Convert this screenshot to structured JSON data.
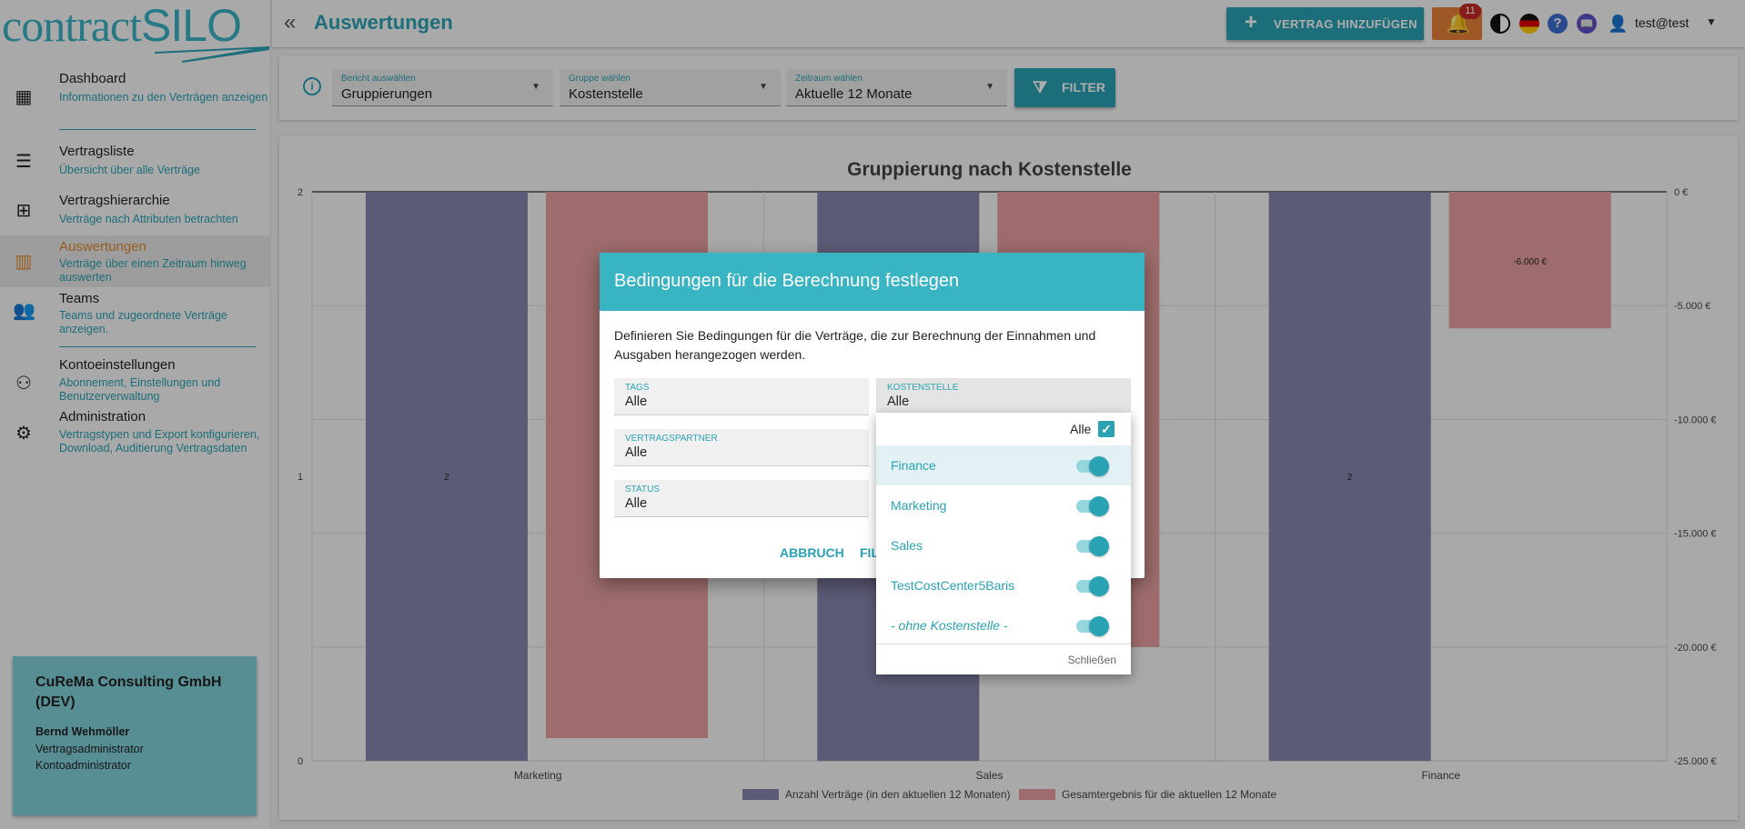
{
  "logo": {
    "part1": "contract",
    "part2": "SILO"
  },
  "sidebar": {
    "items": [
      {
        "label": "Dashboard",
        "sub": "Informationen zu den Verträgen anzeigen",
        "icon": "dashboard-icon"
      },
      {
        "label": "Vertragsliste",
        "sub": "Übersicht über alle Verträge",
        "icon": "list-icon"
      },
      {
        "label": "Vertragshierarchie",
        "sub": "Verträge nach Attributen betrachten",
        "icon": "hierarchy-icon"
      },
      {
        "label": "Auswertungen",
        "sub": "Verträge über einen Zeitraum hinweg auswerten",
        "icon": "chart-icon"
      },
      {
        "label": "Teams",
        "sub": "Teams und zugeordnete Verträge anzeigen.",
        "icon": "team-icon"
      },
      {
        "label": "Kontoeinstellungen",
        "sub": "Abonnement, Einstellungen und Benutzerverwaltung",
        "icon": "account-settings-icon"
      },
      {
        "label": "Administration",
        "sub": "Vertragstypen und Export konfigurieren, Download, Auditierung Vertragsdaten",
        "icon": "gear-icon"
      }
    ]
  },
  "account": {
    "org": "CuReMa Consulting GmbH (DEV)",
    "user": "Bernd Wehmöller",
    "role1": "Vertragsadministrator",
    "role2": "Kontoadministrator"
  },
  "header": {
    "title": "Auswertungen",
    "add_label": "VERTRAG HINZUFÜGEN",
    "notifications": "11",
    "help": "?",
    "user": "test@test"
  },
  "filters": {
    "report": {
      "label": "Bericht auswählen",
      "value": "Gruppierungen"
    },
    "group": {
      "label": "Gruppe wählen",
      "value": "Kostenstelle"
    },
    "period": {
      "label": "Zeitraum wählen",
      "value": "Aktuelle 12 Monate"
    },
    "button": "FILTER"
  },
  "chart_data": {
    "type": "bar",
    "title": "Gruppierung nach Kostenstelle",
    "categories": [
      "Marketing",
      "Sales",
      "Finance"
    ],
    "series": [
      {
        "name": "Anzahl Verträge (in den aktuellen 12 Monaten)",
        "axis": "left",
        "color": "#8886b0",
        "values": [
          2,
          2,
          2
        ],
        "labels": [
          "2",
          "",
          "2"
        ]
      },
      {
        "name": "Gesamtergebnis für die aktuellen 12 Monate",
        "axis": "right",
        "color": "#e9a0a0",
        "values": [
          -24000,
          -20000,
          -6000
        ],
        "labels": [
          "",
          "",
          "-6.000 €"
        ]
      }
    ],
    "left_axis": {
      "ylim": [
        0,
        2
      ],
      "ticks": [
        "0",
        "1",
        "2"
      ]
    },
    "right_axis": {
      "ylim": [
        -25000,
        0
      ],
      "ticks": [
        "0 €",
        "-5.000 €",
        "-10.000 €",
        "-15.000 €",
        "-20.000 €",
        "-25.000 €"
      ]
    },
    "grid": true,
    "legend": "bottom"
  },
  "dialog": {
    "title": "Bedingungen für die Berechnung festlegen",
    "description": "Definieren Sie Bedingungen für die Verträge, die zur Berechnung der Einnahmen und Ausgaben herangezogen werden.",
    "fields": {
      "tags": {
        "label": "TAGS",
        "value": "Alle"
      },
      "partner": {
        "label": "VERTRAGSPARTNER",
        "value": "Alle"
      },
      "status": {
        "label": "STATUS",
        "value": "Alle"
      },
      "kostenstelle": {
        "label": "KOSTENSTELLE",
        "value": "Alle"
      }
    },
    "cancel": "ABBRUCH",
    "confirm": "FIL"
  },
  "dropdown": {
    "all_label": "Alle",
    "options": [
      {
        "label": "Finance",
        "enabled": true
      },
      {
        "label": "Marketing",
        "enabled": true
      },
      {
        "label": "Sales",
        "enabled": true
      },
      {
        "label": "TestCostCenter5Baris",
        "enabled": true
      },
      {
        "label": "- ohne Kostenstelle -",
        "enabled": true
      }
    ],
    "close": "Schließen"
  },
  "colors": {
    "accent": "#2aa2b4",
    "active": "#e08a2c",
    "warning": "#e9823a"
  }
}
